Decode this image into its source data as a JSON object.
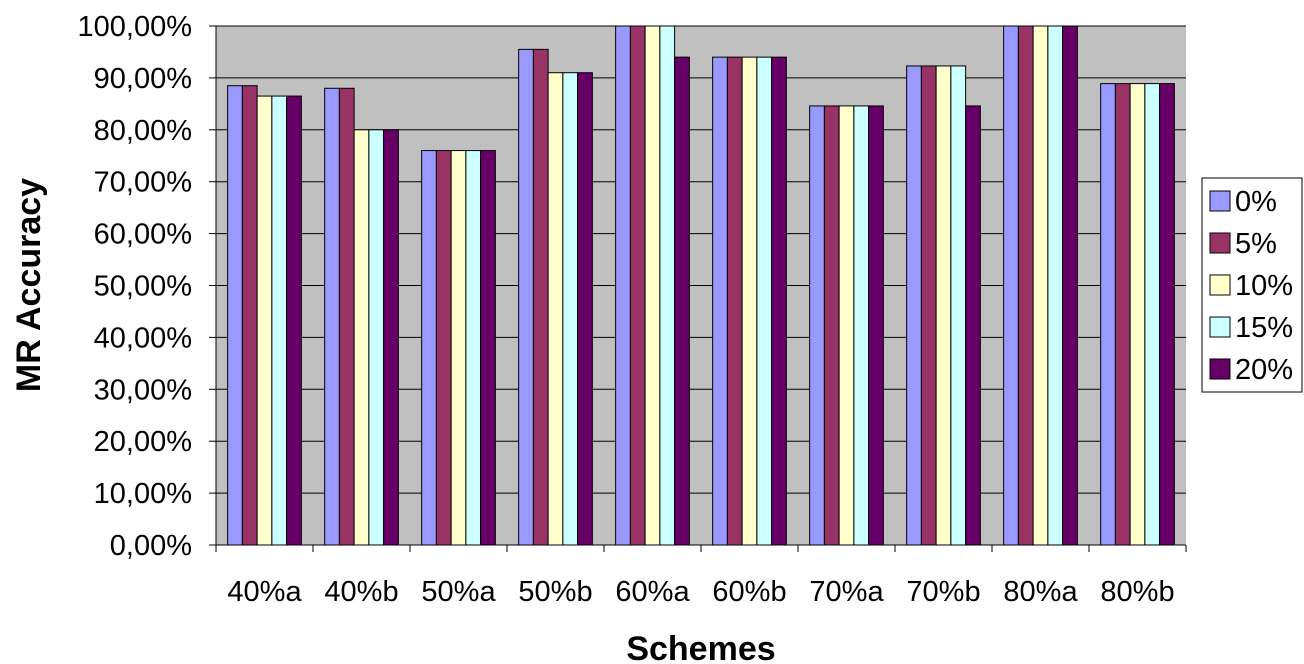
{
  "chart_data": {
    "type": "bar",
    "title": "",
    "xlabel": "Schemes",
    "ylabel": "MR Accuracy",
    "ylim": [
      0,
      100
    ],
    "y_ticks": [
      "0,00%",
      "10,00%",
      "20,00%",
      "30,00%",
      "40,00%",
      "50,00%",
      "60,00%",
      "70,00%",
      "80,00%",
      "90,00%",
      "100,00%"
    ],
    "categories": [
      "40%a",
      "40%b",
      "50%a",
      "50%b",
      "60%a",
      "60%b",
      "70%a",
      "70%b",
      "80%a",
      "80%b"
    ],
    "series": [
      {
        "name": "0%",
        "color": "#9999ff",
        "values": [
          88.5,
          88.0,
          76.0,
          95.5,
          100,
          94.0,
          84.6,
          92.3,
          100,
          88.9
        ]
      },
      {
        "name": "5%",
        "color": "#993366",
        "values": [
          88.5,
          88.0,
          76.0,
          95.5,
          100,
          94.0,
          84.6,
          92.3,
          100,
          88.9
        ]
      },
      {
        "name": "10%",
        "color": "#ffffcc",
        "values": [
          86.5,
          80.0,
          76.0,
          91.0,
          100,
          94.0,
          84.6,
          92.3,
          100,
          88.9
        ]
      },
      {
        "name": "15%",
        "color": "#ccffff",
        "values": [
          86.5,
          80.0,
          76.0,
          91.0,
          100,
          94.0,
          84.6,
          92.3,
          100,
          88.9
        ]
      },
      {
        "name": "20%",
        "color": "#660066",
        "values": [
          86.5,
          80.0,
          76.0,
          91.0,
          94.0,
          94.0,
          84.6,
          84.6,
          100,
          88.9
        ]
      }
    ],
    "plot_background": "#c0c0c0",
    "grid": true,
    "legend": "right"
  }
}
